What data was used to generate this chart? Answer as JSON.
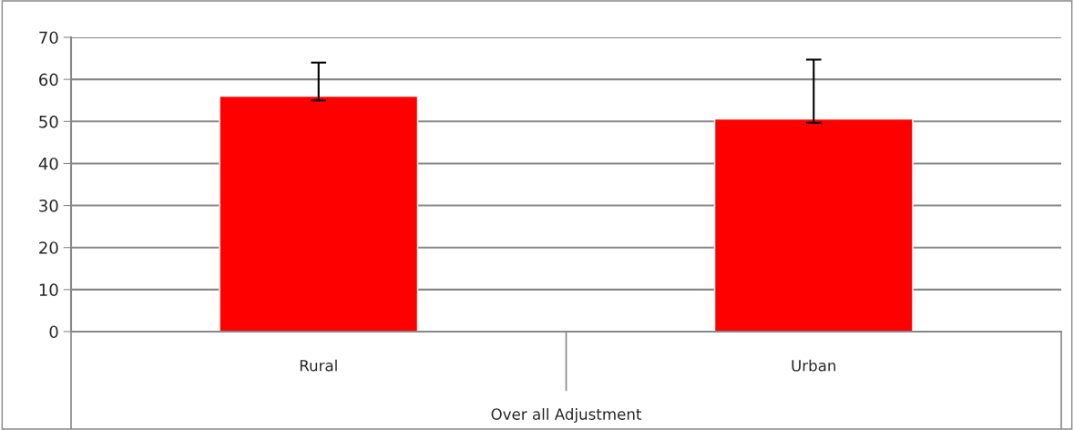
{
  "chart_data": {
    "type": "bar",
    "xlabel": "Over all Adjustment",
    "categories": [
      "Rural",
      "Urban"
    ],
    "values": [
      56,
      50.6
    ],
    "errors": [
      [
        55,
        64
      ],
      [
        49.7,
        64.7
      ]
    ],
    "color": "#ff0000",
    "ylim": [
      0,
      70
    ],
    "yticks": [
      0,
      10,
      20,
      30,
      40,
      50,
      60,
      70
    ],
    "grid": "y",
    "legend": false
  }
}
